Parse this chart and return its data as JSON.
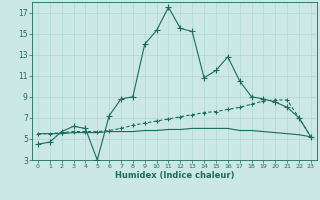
{
  "xlabel": "Humidex (Indice chaleur)",
  "bg_color": "#cce8e4",
  "grid_color": "#b0d8d2",
  "line_color": "#1a6b60",
  "xlim": [
    -0.5,
    23.5
  ],
  "ylim": [
    3,
    18
  ],
  "yticks": [
    3,
    5,
    7,
    9,
    11,
    13,
    15,
    17
  ],
  "xticks": [
    0,
    1,
    2,
    3,
    4,
    5,
    6,
    7,
    8,
    9,
    10,
    11,
    12,
    13,
    14,
    15,
    16,
    17,
    18,
    19,
    20,
    21,
    22,
    23
  ],
  "line1_x": [
    0,
    1,
    2,
    3,
    4,
    5,
    6,
    7,
    8,
    9,
    10,
    11,
    12,
    13,
    14,
    15,
    16,
    17,
    18,
    19,
    20,
    21,
    22,
    23
  ],
  "line1_y": [
    4.5,
    4.7,
    5.7,
    6.2,
    6.0,
    3.0,
    7.2,
    8.8,
    9.0,
    14.0,
    15.3,
    17.5,
    15.5,
    15.2,
    10.8,
    11.5,
    12.8,
    10.5,
    9.0,
    8.8,
    8.5,
    8.0,
    7.0,
    5.2
  ],
  "line2_x": [
    0,
    1,
    2,
    3,
    4,
    5,
    6,
    7,
    8,
    9,
    10,
    11,
    12,
    13,
    14,
    15,
    16,
    17,
    18,
    19,
    20,
    21,
    22,
    23
  ],
  "line2_y": [
    5.5,
    5.5,
    5.6,
    5.7,
    5.7,
    5.7,
    5.8,
    6.0,
    6.3,
    6.5,
    6.7,
    6.9,
    7.1,
    7.3,
    7.5,
    7.6,
    7.8,
    8.0,
    8.3,
    8.6,
    8.7,
    8.7,
    7.0,
    5.2
  ],
  "line3_x": [
    0,
    1,
    2,
    3,
    4,
    5,
    6,
    7,
    8,
    9,
    10,
    11,
    12,
    13,
    14,
    15,
    16,
    17,
    18,
    19,
    20,
    21,
    22,
    23
  ],
  "line3_y": [
    5.5,
    5.5,
    5.5,
    5.6,
    5.6,
    5.6,
    5.7,
    5.7,
    5.7,
    5.8,
    5.8,
    5.9,
    5.9,
    6.0,
    6.0,
    6.0,
    6.0,
    5.8,
    5.8,
    5.7,
    5.6,
    5.5,
    5.4,
    5.2
  ]
}
